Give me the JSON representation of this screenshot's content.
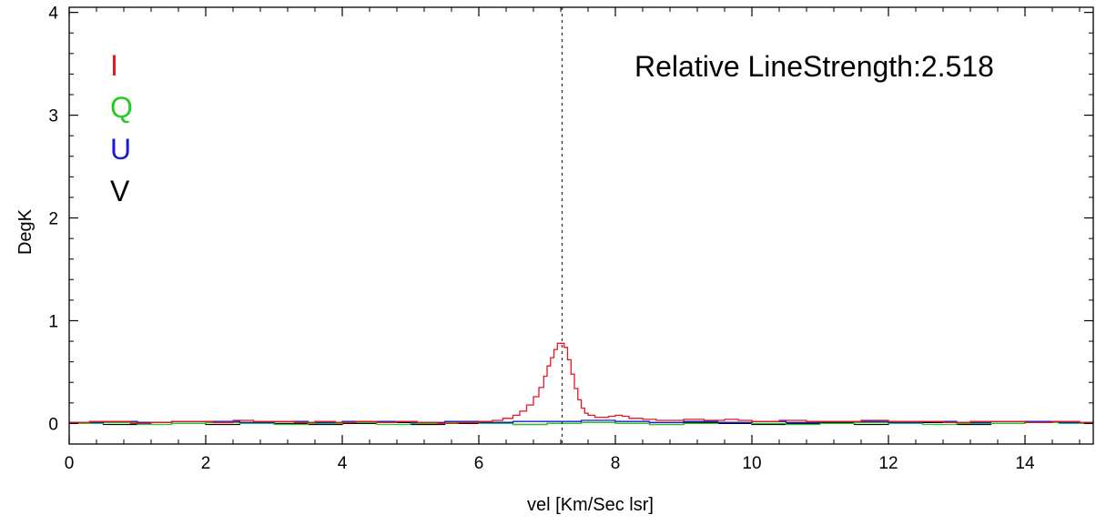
{
  "chart_data": {
    "type": "line",
    "xlabel": "vel [Km/Sec lsr]",
    "ylabel": "DegK",
    "xlim": [
      0,
      15
    ],
    "ylim": [
      -0.2,
      4.05
    ],
    "xticks": [
      0,
      2,
      4,
      6,
      8,
      10,
      12,
      14
    ],
    "xtick_labels": [
      "0",
      "2",
      "4",
      "6",
      "8",
      "10",
      "12",
      "14"
    ],
    "yticks": [
      0,
      1,
      2,
      3,
      4
    ],
    "ytick_labels": [
      "0",
      "1",
      "2",
      "3",
      "4"
    ],
    "grid": false,
    "legend_position": "top-left",
    "annotation": "Relative LineStrength:2.518",
    "reference_line_x": 7.22,
    "series": [
      {
        "name": "I",
        "color": "#e8141e",
        "x": [
          0.0,
          0.3,
          0.6,
          0.9,
          1.2,
          1.5,
          1.8,
          2.1,
          2.4,
          2.7,
          3.0,
          3.3,
          3.6,
          3.9,
          4.2,
          4.5,
          4.8,
          5.1,
          5.4,
          5.7,
          6.0,
          6.2,
          6.35,
          6.5,
          6.6,
          6.7,
          6.8,
          6.88,
          6.95,
          7.0,
          7.05,
          7.1,
          7.15,
          7.2,
          7.25,
          7.3,
          7.35,
          7.4,
          7.45,
          7.5,
          7.55,
          7.6,
          7.7,
          7.8,
          7.9,
          8.0,
          8.1,
          8.2,
          8.4,
          8.6,
          8.8,
          9.0,
          9.3,
          9.6,
          9.8,
          10.0,
          10.4,
          10.8,
          11.2,
          11.6,
          12.0,
          12.4,
          12.8,
          13.2,
          13.6,
          14.0,
          14.4,
          14.8,
          15.0
        ],
        "y": [
          0.01,
          0.02,
          0.02,
          0.0,
          0.01,
          0.02,
          0.02,
          0.01,
          0.03,
          0.02,
          0.02,
          0.01,
          0.02,
          0.01,
          0.02,
          0.01,
          0.02,
          0.01,
          0.0,
          0.01,
          0.02,
          0.03,
          0.05,
          0.08,
          0.12,
          0.18,
          0.26,
          0.35,
          0.46,
          0.56,
          0.64,
          0.72,
          0.78,
          0.78,
          0.74,
          0.62,
          0.48,
          0.34,
          0.23,
          0.15,
          0.1,
          0.08,
          0.06,
          0.06,
          0.07,
          0.08,
          0.07,
          0.05,
          0.04,
          0.03,
          0.03,
          0.04,
          0.03,
          0.04,
          0.03,
          0.02,
          0.03,
          0.02,
          0.02,
          0.03,
          0.02,
          0.02,
          0.01,
          0.02,
          0.02,
          0.01,
          0.02,
          0.01,
          0.02
        ]
      },
      {
        "name": "Q",
        "color": "#22cc22",
        "x": [
          0.0,
          0.5,
          1.0,
          1.5,
          2.0,
          2.5,
          3.0,
          3.5,
          4.0,
          4.5,
          5.0,
          5.5,
          6.0,
          6.5,
          7.0,
          7.5,
          8.0,
          8.5,
          9.0,
          9.5,
          10.0,
          10.5,
          11.0,
          11.5,
          12.0,
          12.5,
          13.0,
          13.5,
          14.0,
          14.5,
          15.0
        ],
        "y": [
          0.0,
          0.01,
          -0.01,
          0.0,
          0.01,
          0.0,
          -0.01,
          0.0,
          0.01,
          -0.01,
          0.0,
          0.01,
          0.0,
          -0.01,
          0.0,
          0.01,
          0.0,
          -0.01,
          0.0,
          0.01,
          0.0,
          -0.01,
          0.0,
          0.01,
          0.0,
          -0.01,
          0.0,
          0.0,
          0.01,
          0.0,
          0.0
        ]
      },
      {
        "name": "U",
        "color": "#1a1ad4",
        "x": [
          0.0,
          0.5,
          1.0,
          1.5,
          2.0,
          2.5,
          3.0,
          3.5,
          4.0,
          4.5,
          5.0,
          5.5,
          6.0,
          6.5,
          7.0,
          7.5,
          8.0,
          8.5,
          9.0,
          9.5,
          10.0,
          10.5,
          11.0,
          11.5,
          12.0,
          12.5,
          13.0,
          13.5,
          14.0,
          14.5,
          15.0
        ],
        "y": [
          0.01,
          0.02,
          0.01,
          0.02,
          0.02,
          0.01,
          0.02,
          0.01,
          0.02,
          0.02,
          0.01,
          0.02,
          0.01,
          0.02,
          0.02,
          0.03,
          0.02,
          0.01,
          0.02,
          0.01,
          0.02,
          0.01,
          0.02,
          0.02,
          0.01,
          0.02,
          0.01,
          0.02,
          0.02,
          0.01,
          0.02
        ]
      },
      {
        "name": "V",
        "color": "#000000",
        "x": [
          0.0,
          0.5,
          1.0,
          1.5,
          2.0,
          2.5,
          3.0,
          3.5,
          4.0,
          4.5,
          5.0,
          5.5,
          6.0,
          6.5,
          7.0,
          7.5,
          8.0,
          8.5,
          9.0,
          9.5,
          10.0,
          10.5,
          11.0,
          11.5,
          12.0,
          12.5,
          13.0,
          13.5,
          14.0,
          14.5,
          15.0
        ],
        "y": [
          0.0,
          -0.01,
          0.01,
          0.0,
          -0.01,
          0.01,
          0.0,
          -0.01,
          0.0,
          0.01,
          -0.01,
          0.0,
          0.01,
          -0.01,
          0.0,
          0.01,
          0.0,
          -0.01,
          0.01,
          0.0,
          -0.01,
          0.0,
          0.01,
          -0.01,
          0.0,
          0.01,
          -0.01,
          0.0,
          0.01,
          0.0,
          0.0
        ]
      }
    ]
  }
}
